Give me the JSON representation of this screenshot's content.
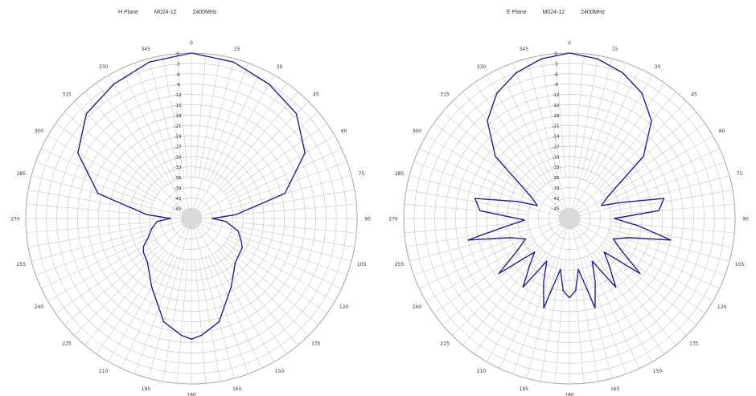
{
  "chart_data": [
    {
      "type": "polar-line",
      "title_parts": [
        "H Plane",
        "M024-12",
        "2400MHz"
      ],
      "angle_ticks": [
        "0",
        "15",
        "30",
        "45",
        "60",
        "75",
        "90",
        "105",
        "120",
        "135",
        "150",
        "165",
        "180",
        "195",
        "210",
        "225",
        "240",
        "255",
        "270",
        "285",
        "300",
        "315",
        "330",
        "345"
      ],
      "radial_ticks": [
        "0",
        "-3",
        "-6",
        "-9",
        "-12",
        "-15",
        "-18",
        "-21",
        "-24",
        "-27",
        "-30",
        "-33",
        "-36",
        "-39",
        "-42",
        "-45"
      ],
      "rlim": [
        -48,
        0
      ],
      "grid": true,
      "series": [
        {
          "color": "#1f1f8f",
          "theta": [
            0,
            15,
            30,
            45,
            60,
            75,
            85,
            90,
            95,
            105,
            115,
            120,
            135,
            150,
            165,
            175,
            180,
            185,
            195,
            210,
            225,
            235,
            240,
            245,
            255,
            265,
            270,
            275,
            285,
            300,
            315,
            330,
            345,
            360
          ],
          "r": [
            0,
            -1,
            -3,
            -5,
            -10,
            -20,
            -35,
            -42,
            -38,
            -34,
            -32,
            -31,
            -30,
            -25,
            -17,
            -14,
            -13,
            -14,
            -17,
            -25,
            -30,
            -31,
            -32,
            -34,
            -36,
            -38,
            -42,
            -35,
            -20,
            -10,
            -5,
            -3,
            -1,
            0
          ]
        }
      ]
    },
    {
      "type": "polar-line",
      "title_parts": [
        "E Plane",
        "M024-12",
        "2400MHz"
      ],
      "angle_ticks": [
        "0",
        "15",
        "30",
        "45",
        "60",
        "75",
        "90",
        "105",
        "120",
        "135",
        "150",
        "165",
        "180",
        "195",
        "210",
        "225",
        "240",
        "255",
        "270",
        "285",
        "300",
        "315",
        "330",
        "345"
      ],
      "radial_ticks": [
        "0",
        "-3",
        "-6",
        "-9",
        "-12",
        "-15",
        "-18",
        "-21",
        "-24",
        "-27",
        "-30",
        "-33",
        "-36",
        "-39",
        "-42",
        "-45"
      ],
      "rlim": [
        -48,
        0
      ],
      "grid": true,
      "series": [
        {
          "color": "#1f1f8f",
          "theta": [
            0,
            10,
            20,
            30,
            40,
            50,
            60,
            68,
            73,
            78,
            85,
            90,
            96,
            102,
            108,
            115,
            122,
            128,
            134,
            140,
            146,
            152,
            158,
            164,
            170,
            175,
            180,
            185,
            190,
            196,
            202,
            208,
            214,
            220,
            226,
            232,
            238,
            245,
            252,
            258,
            262,
            268,
            275,
            282,
            288,
            292,
            300,
            310,
            320,
            330,
            340,
            350,
            360
          ],
          "r": [
            0,
            -1,
            -3,
            -6,
            -11,
            -20,
            -35,
            -38,
            -32,
            -20,
            -22,
            -35,
            -28,
            -18,
            -30,
            -34,
            -30,
            -22,
            -34,
            -30,
            -24,
            -34,
            -28,
            -21,
            -33,
            -27,
            -25,
            -27,
            -33,
            -21,
            -28,
            -34,
            -24,
            -30,
            -34,
            -22,
            -30,
            -34,
            -30,
            -18,
            -28,
            -35,
            -22,
            -20,
            -32,
            -38,
            -35,
            -20,
            -11,
            -6,
            -3,
            -1,
            0
          ]
        }
      ]
    }
  ]
}
